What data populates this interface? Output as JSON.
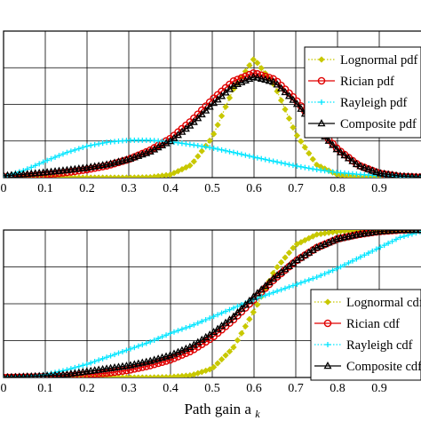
{
  "chart_data": [
    {
      "type": "line",
      "xlim": [
        0,
        1
      ],
      "ylim": [
        0,
        4
      ],
      "grid": true,
      "x_ticks": [
        0,
        0.1,
        0.2,
        0.3,
        0.4,
        0.5,
        0.6,
        0.7,
        0.8,
        0.9
      ],
      "x_tick_labels": [
        "0",
        "0.1",
        "0.2",
        "0.3",
        "0.4",
        "0.5",
        "0.6",
        "0.7",
        "0.8",
        "0.9"
      ],
      "legend_position": "top-right",
      "x": [
        0,
        0.05,
        0.1,
        0.15,
        0.2,
        0.25,
        0.3,
        0.35,
        0.4,
        0.45,
        0.5,
        0.55,
        0.6,
        0.65,
        0.7,
        0.75,
        0.8,
        0.85,
        0.9,
        0.95,
        1.0
      ],
      "series": [
        {
          "name": "Lognormal pdf",
          "color": "#c8c800",
          "style": "dotted",
          "marker": "diamond",
          "values": [
            0,
            0,
            0,
            0,
            0,
            0,
            0,
            0.01,
            0.08,
            0.35,
            1.1,
            2.4,
            3.25,
            2.5,
            1.2,
            0.35,
            0.08,
            0.01,
            0,
            0,
            0
          ]
        },
        {
          "name": "Rician pdf",
          "color": "#e00000",
          "style": "solid",
          "marker": "circle",
          "values": [
            0.02,
            0.04,
            0.08,
            0.14,
            0.22,
            0.33,
            0.5,
            0.74,
            1.07,
            1.55,
            2.13,
            2.63,
            2.86,
            2.68,
            2.13,
            1.42,
            0.78,
            0.34,
            0.12,
            0.03,
            0.01
          ]
        },
        {
          "name": "Rayleigh pdf",
          "color": "#00e5ff",
          "style": "dotted",
          "marker": "plus",
          "values": [
            0.03,
            0.2,
            0.45,
            0.68,
            0.86,
            0.97,
            1.02,
            1.02,
            0.98,
            0.9,
            0.81,
            0.69,
            0.56,
            0.44,
            0.32,
            0.22,
            0.14,
            0.09,
            0.05,
            0.02,
            0.01
          ]
        },
        {
          "name": "Composite pdf",
          "color": "#000000",
          "style": "solid",
          "marker": "triangle",
          "values": [
            0.05,
            0.09,
            0.14,
            0.2,
            0.27,
            0.36,
            0.5,
            0.7,
            1.0,
            1.45,
            2.0,
            2.5,
            2.75,
            2.6,
            2.05,
            1.35,
            0.75,
            0.33,
            0.12,
            0.04,
            0.01
          ]
        }
      ]
    },
    {
      "type": "line",
      "xlim": [
        0,
        1
      ],
      "ylim": [
        0,
        1
      ],
      "grid": true,
      "x_ticks": [
        0,
        0.1,
        0.2,
        0.3,
        0.4,
        0.5,
        0.6,
        0.7,
        0.8,
        0.9
      ],
      "x_tick_labels": [
        "0",
        "0.1",
        "0.2",
        "0.3",
        "0.4",
        "0.5",
        "0.6",
        "0.7",
        "0.8",
        "0.9"
      ],
      "xlabel": "Path gain a",
      "xlabel_subscript": "k",
      "legend_position": "bottom-right",
      "x": [
        0,
        0.05,
        0.1,
        0.15,
        0.2,
        0.25,
        0.3,
        0.35,
        0.4,
        0.45,
        0.5,
        0.55,
        0.6,
        0.65,
        0.7,
        0.75,
        0.8,
        0.85,
        0.9,
        0.95,
        1.0
      ],
      "series": [
        {
          "name": "Lognormal cdf",
          "color": "#c8c800",
          "style": "dotted",
          "marker": "diamond",
          "values": [
            0,
            0,
            0,
            0,
            0,
            0,
            0,
            0,
            0.003,
            0.015,
            0.06,
            0.2,
            0.45,
            0.73,
            0.9,
            0.97,
            0.99,
            1,
            1,
            1,
            1
          ]
        },
        {
          "name": "Rician cdf",
          "color": "#e00000",
          "style": "solid",
          "marker": "circle",
          "values": [
            0,
            0.002,
            0.005,
            0.01,
            0.02,
            0.03,
            0.05,
            0.08,
            0.12,
            0.18,
            0.27,
            0.39,
            0.53,
            0.67,
            0.79,
            0.88,
            0.94,
            0.97,
            0.99,
            1,
            1
          ]
        },
        {
          "name": "Rayleigh cdf",
          "color": "#00e5ff",
          "style": "dotted",
          "marker": "plus",
          "values": [
            0,
            0.005,
            0.02,
            0.05,
            0.09,
            0.14,
            0.19,
            0.24,
            0.3,
            0.35,
            0.41,
            0.47,
            0.53,
            0.58,
            0.63,
            0.68,
            0.74,
            0.81,
            0.88,
            0.95,
            0.99
          ]
        },
        {
          "name": "Composite cdf",
          "color": "#000000",
          "style": "solid",
          "marker": "triangle",
          "values": [
            0,
            0.005,
            0.01,
            0.02,
            0.04,
            0.06,
            0.08,
            0.11,
            0.15,
            0.21,
            0.3,
            0.41,
            0.55,
            0.68,
            0.79,
            0.88,
            0.94,
            0.97,
            0.99,
            1,
            1
          ]
        }
      ]
    }
  ]
}
